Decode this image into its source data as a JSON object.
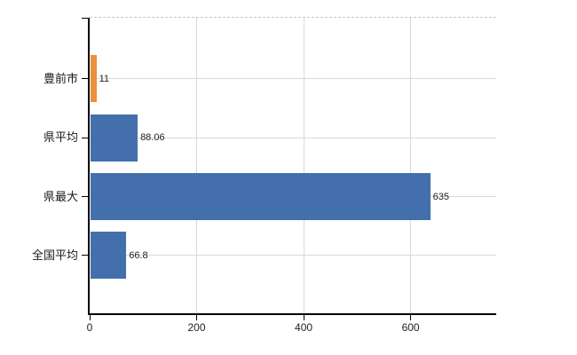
{
  "chart_data": {
    "type": "bar",
    "orientation": "horizontal",
    "title": "",
    "categories": [
      "豊前市",
      "県平均",
      "県最大",
      "全国平均"
    ],
    "values": [
      11,
      88.06,
      635,
      66.8
    ],
    "value_labels": [
      "11",
      "88.06",
      "635",
      "66.8"
    ],
    "bar_colors": [
      "#EB8F3A",
      "#4370AC",
      "#4370AC",
      "#4370AC"
    ],
    "x_ticks": [
      0,
      200,
      400,
      600
    ],
    "x_tick_labels": [
      "0",
      "200",
      "400",
      "600"
    ],
    "xlim": [
      0,
      760
    ],
    "grid": true,
    "legend": false,
    "background_color": "#ffffff",
    "axis_color": "#000000",
    "gridline_color": "#d9d9d9",
    "top_border_style": "dashed",
    "label_color": "#222222"
  }
}
